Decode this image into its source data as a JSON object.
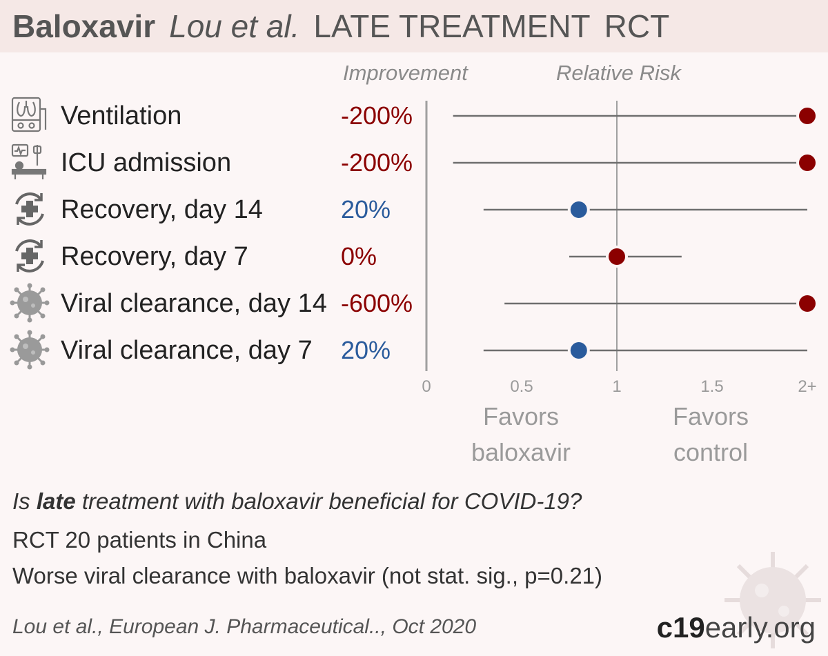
{
  "title": {
    "drug": "Baloxavir",
    "author": "Lou et al.",
    "stage": "LATE TREATMENT",
    "type": "RCT"
  },
  "columns": {
    "improvement": "Improvement",
    "relative_risk": "Relative Risk"
  },
  "colors": {
    "harm": "#8b0000",
    "benefit": "#2a5b9c",
    "line": "#6e6e6e",
    "axis": "#a0a0a0"
  },
  "chart_data": {
    "type": "forest",
    "xlim": [
      0,
      2
    ],
    "ticks": [
      "0",
      "0.5",
      "1",
      "1.5",
      "2+"
    ],
    "tick_values": [
      0,
      0.5,
      1,
      1.5,
      2
    ],
    "reference_line": 1,
    "favors_left": "Favors baloxavir",
    "favors_right": "Favors control",
    "outcomes": [
      {
        "label": "Ventilation",
        "improvement": "-200%",
        "rr": 3.0,
        "ci_low": 0.14,
        "ci_high": 2.0,
        "icon": "ventilator-icon",
        "color": "harm"
      },
      {
        "label": "ICU admission",
        "improvement": "-200%",
        "rr": 3.0,
        "ci_low": 0.14,
        "ci_high": 2.0,
        "icon": "icu-bed-icon",
        "color": "harm"
      },
      {
        "label": "Recovery, day 14",
        "improvement": "20%",
        "rr": 0.8,
        "ci_low": 0.3,
        "ci_high": 2.0,
        "icon": "recovery-icon",
        "color": "benefit"
      },
      {
        "label": "Recovery, day 7",
        "improvement": "0%",
        "rr": 1.0,
        "ci_low": 0.75,
        "ci_high": 1.34,
        "icon": "recovery-icon",
        "color": "harm"
      },
      {
        "label": "Viral clearance, day 14",
        "improvement": "-600%",
        "rr": 7.0,
        "ci_low": 0.41,
        "ci_high": 2.0,
        "icon": "virus-icon",
        "color": "harm"
      },
      {
        "label": "Viral clearance, day 7",
        "improvement": "20%",
        "rr": 0.8,
        "ci_low": 0.3,
        "ci_high": 2.0,
        "icon": "virus-icon",
        "color": "benefit"
      }
    ]
  },
  "summary": {
    "q_pre": "Is ",
    "q_bold": "late",
    "q_post": " treatment with baloxavir beneficial for COVID-19?",
    "line2": "RCT 20 patients in China",
    "line3": "Worse viral clearance with baloxavir (not stat. sig., p=0.21)"
  },
  "citation": "Lou et al., European J. Pharmaceutical.., Oct 2020",
  "brand": {
    "strong": "c19",
    "light": "early.org"
  }
}
